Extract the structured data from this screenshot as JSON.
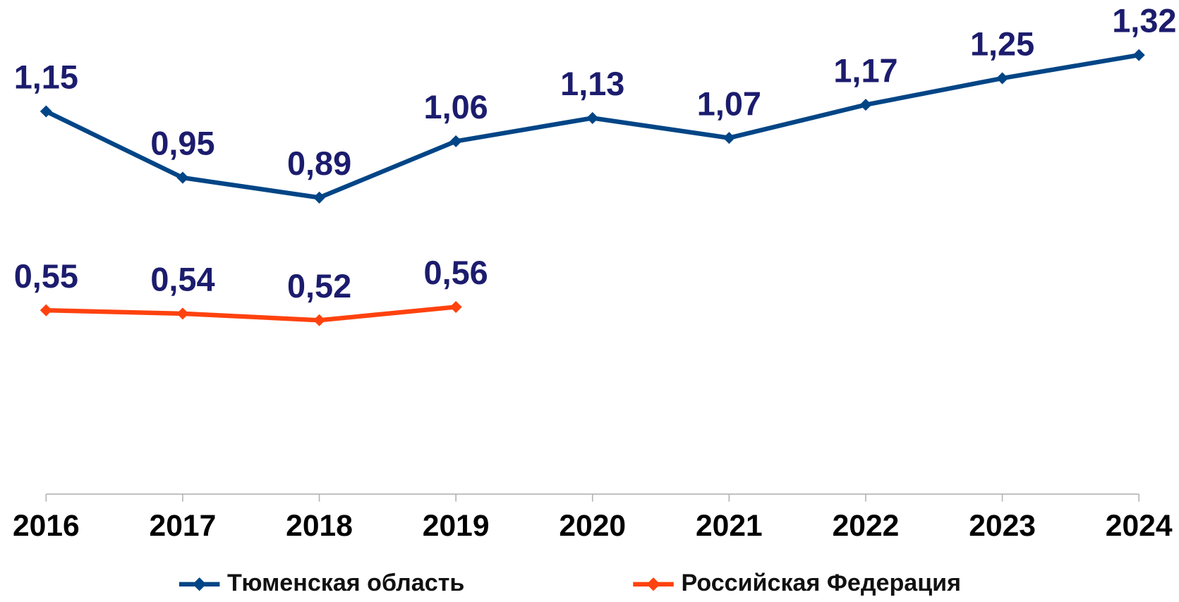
{
  "chart_data": {
    "type": "line",
    "categories": [
      "2016",
      "2017",
      "2018",
      "2019",
      "2020",
      "2021",
      "2022",
      "2023",
      "2024"
    ],
    "series": [
      {
        "name": "Тюменская область",
        "color": "#004586",
        "values": [
          1.15,
          0.95,
          0.89,
          1.06,
          1.13,
          1.07,
          1.17,
          1.25,
          1.32
        ],
        "value_labels": [
          "1,15",
          "0,95",
          "0,89",
          "1,06",
          "1,13",
          "1,07",
          "1,17",
          "1,25",
          "1,32"
        ]
      },
      {
        "name": "Российская Федерация",
        "color": "#ff420e",
        "values": [
          0.55,
          0.54,
          0.52,
          0.56,
          null,
          null,
          null,
          null,
          null
        ],
        "value_labels": [
          "0,55",
          "0,54",
          "0,52",
          "0,56",
          null,
          null,
          null,
          null,
          null
        ]
      }
    ],
    "ylim": [
      0,
      1.4
    ],
    "grid": false,
    "legend": "bottom"
  }
}
